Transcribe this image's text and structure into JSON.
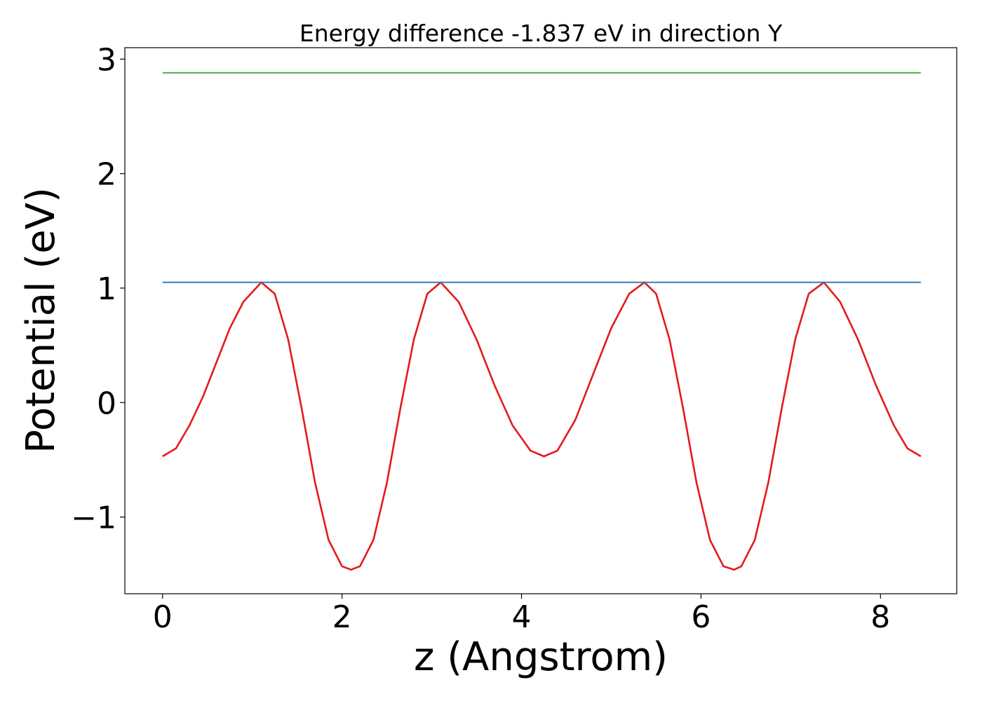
{
  "chart_data": {
    "type": "line",
    "title": "Energy difference -1.837 eV in direction Y",
    "xlabel": "z (Angstrom)",
    "ylabel": "Potential (eV)",
    "xlim": [
      -0.42,
      8.85
    ],
    "ylim": [
      -1.67,
      3.1
    ],
    "xticks": [
      0,
      2,
      4,
      6,
      8
    ],
    "xtick_labels": [
      "0",
      "2",
      "4",
      "6",
      "8"
    ],
    "yticks": [
      -1,
      0,
      1,
      2,
      3
    ],
    "ytick_labels": [
      "−1",
      "0",
      "1",
      "2",
      "3"
    ],
    "grid": false,
    "legend": "none",
    "series": [
      {
        "color": "#e41a1c",
        "x": [
          0.0,
          0.15,
          0.3,
          0.45,
          0.6,
          0.75,
          0.9,
          1.1,
          1.25,
          1.4,
          1.55,
          1.7,
          1.85,
          2.0,
          2.1,
          2.2,
          2.35,
          2.5,
          2.65,
          2.8,
          2.95,
          3.1,
          3.3,
          3.5,
          3.7,
          3.9,
          4.1,
          4.25,
          4.4,
          4.6,
          4.8,
          5.0,
          5.2,
          5.37,
          5.5,
          5.65,
          5.8,
          5.95,
          6.1,
          6.25,
          6.37,
          6.45,
          6.6,
          6.75,
          6.9,
          7.05,
          7.2,
          7.37,
          7.55,
          7.75,
          7.95,
          8.15,
          8.3,
          8.45
        ],
        "values": [
          -0.47,
          -0.4,
          -0.2,
          0.05,
          0.35,
          0.65,
          0.88,
          1.05,
          0.95,
          0.55,
          -0.05,
          -0.7,
          -1.2,
          -1.43,
          -1.46,
          -1.43,
          -1.2,
          -0.7,
          -0.05,
          0.55,
          0.95,
          1.05,
          0.88,
          0.55,
          0.15,
          -0.2,
          -0.42,
          -0.47,
          -0.42,
          -0.15,
          0.25,
          0.65,
          0.95,
          1.05,
          0.95,
          0.55,
          -0.05,
          -0.7,
          -1.2,
          -1.43,
          -1.46,
          -1.43,
          -1.2,
          -0.7,
          -0.05,
          0.55,
          0.95,
          1.05,
          0.88,
          0.55,
          0.15,
          -0.2,
          -0.4,
          -0.47
        ]
      },
      {
        "color": "#377eb8",
        "x": [
          0.0,
          8.45
        ],
        "values": [
          1.05,
          1.05
        ]
      },
      {
        "color": "#4daf4a",
        "x": [
          0.0,
          8.45
        ],
        "values": [
          2.88,
          2.88
        ]
      }
    ]
  }
}
